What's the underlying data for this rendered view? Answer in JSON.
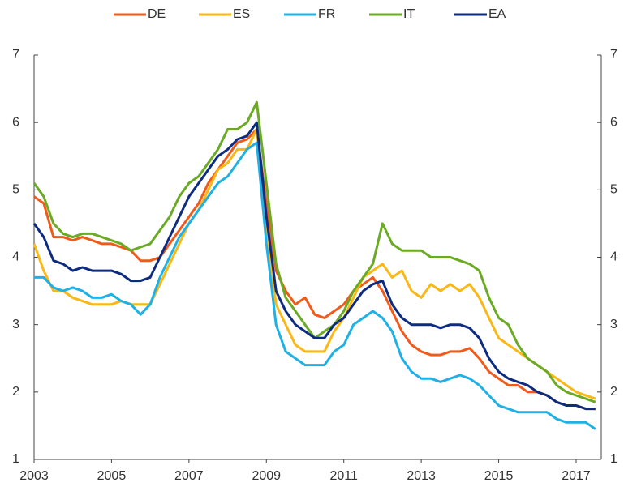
{
  "chart_data": {
    "type": "line",
    "x": [
      2003,
      2003.25,
      2003.5,
      2003.75,
      2004,
      2004.25,
      2004.5,
      2004.75,
      2005,
      2005.25,
      2005.5,
      2005.75,
      2006,
      2006.25,
      2006.5,
      2006.75,
      2007,
      2007.25,
      2007.5,
      2007.75,
      2008,
      2008.25,
      2008.5,
      2008.75,
      2009,
      2009.25,
      2009.5,
      2009.75,
      2010,
      2010.25,
      2010.5,
      2010.75,
      2011,
      2011.25,
      2011.5,
      2011.75,
      2012,
      2012.25,
      2012.5,
      2012.75,
      2013,
      2013.25,
      2013.5,
      2013.75,
      2014,
      2014.25,
      2014.5,
      2014.75,
      2015,
      2015.25,
      2015.5,
      2015.75,
      2016,
      2016.25,
      2016.5,
      2016.75,
      2017,
      2017.25,
      2017.5
    ],
    "series": [
      {
        "name": "DE",
        "color": "#f05a1a",
        "values": [
          4.9,
          4.8,
          4.3,
          4.3,
          4.25,
          4.3,
          4.25,
          4.2,
          4.2,
          4.15,
          4.1,
          3.95,
          3.95,
          4.0,
          4.2,
          4.4,
          4.6,
          4.8,
          5.1,
          5.3,
          5.5,
          5.7,
          5.75,
          5.9,
          4.8,
          3.8,
          3.5,
          3.3,
          3.4,
          3.15,
          3.1,
          3.2,
          3.3,
          3.5,
          3.6,
          3.7,
          3.5,
          3.2,
          2.9,
          2.7,
          2.6,
          2.55,
          2.55,
          2.6,
          2.6,
          2.65,
          2.5,
          2.3,
          2.2,
          2.1,
          2.1,
          2.0,
          2.0,
          1.95,
          1.85,
          1.8,
          1.8,
          1.75,
          1.75
        ]
      },
      {
        "name": "ES",
        "color": "#fbb714",
        "values": [
          4.2,
          3.8,
          3.5,
          3.5,
          3.4,
          3.35,
          3.3,
          3.3,
          3.3,
          3.35,
          3.3,
          3.3,
          3.3,
          3.6,
          3.9,
          4.2,
          4.5,
          4.7,
          5.0,
          5.3,
          5.4,
          5.6,
          5.6,
          5.9,
          4.5,
          3.3,
          3.0,
          2.7,
          2.6,
          2.6,
          2.6,
          2.9,
          3.1,
          3.4,
          3.7,
          3.8,
          3.9,
          3.7,
          3.8,
          3.5,
          3.4,
          3.6,
          3.5,
          3.6,
          3.5,
          3.6,
          3.4,
          3.1,
          2.8,
          2.7,
          2.6,
          2.5,
          2.4,
          2.3,
          2.2,
          2.1,
          2.0,
          1.95,
          1.9
        ]
      },
      {
        "name": "FR",
        "color": "#1fb1e6",
        "values": [
          3.7,
          3.7,
          3.55,
          3.5,
          3.55,
          3.5,
          3.4,
          3.4,
          3.45,
          3.35,
          3.3,
          3.15,
          3.3,
          3.7,
          4.0,
          4.3,
          4.5,
          4.7,
          4.9,
          5.1,
          5.2,
          5.4,
          5.6,
          5.7,
          4.2,
          3.0,
          2.6,
          2.5,
          2.4,
          2.4,
          2.4,
          2.6,
          2.7,
          3.0,
          3.1,
          3.2,
          3.1,
          2.9,
          2.5,
          2.3,
          2.2,
          2.2,
          2.15,
          2.2,
          2.25,
          2.2,
          2.1,
          1.95,
          1.8,
          1.75,
          1.7,
          1.7,
          1.7,
          1.7,
          1.6,
          1.55,
          1.55,
          1.55,
          1.45
        ]
      },
      {
        "name": "IT",
        "color": "#6aaa24",
        "values": [
          5.1,
          4.9,
          4.5,
          4.35,
          4.3,
          4.35,
          4.35,
          4.3,
          4.25,
          4.2,
          4.1,
          4.15,
          4.2,
          4.4,
          4.6,
          4.9,
          5.1,
          5.2,
          5.4,
          5.6,
          5.9,
          5.9,
          6.0,
          6.3,
          5.1,
          3.9,
          3.4,
          3.2,
          3.0,
          2.8,
          2.9,
          3.0,
          3.2,
          3.5,
          3.7,
          3.9,
          4.5,
          4.2,
          4.1,
          4.1,
          4.1,
          4.0,
          4.0,
          4.0,
          3.95,
          3.9,
          3.8,
          3.4,
          3.1,
          3.0,
          2.7,
          2.5,
          2.4,
          2.3,
          2.1,
          2.0,
          1.95,
          1.9,
          1.85
        ]
      },
      {
        "name": "EA",
        "color": "#0d2b80",
        "values": [
          4.5,
          4.3,
          3.95,
          3.9,
          3.8,
          3.85,
          3.8,
          3.8,
          3.8,
          3.75,
          3.65,
          3.65,
          3.7,
          4.0,
          4.3,
          4.6,
          4.9,
          5.1,
          5.3,
          5.5,
          5.6,
          5.75,
          5.8,
          6.0,
          4.6,
          3.5,
          3.2,
          3.0,
          2.9,
          2.8,
          2.8,
          3.0,
          3.1,
          3.3,
          3.5,
          3.6,
          3.65,
          3.3,
          3.1,
          3.0,
          3.0,
          3.0,
          2.95,
          3.0,
          3.0,
          2.95,
          2.8,
          2.5,
          2.3,
          2.2,
          2.15,
          2.1,
          2.0,
          1.95,
          1.85,
          1.8,
          1.8,
          1.75,
          1.75
        ]
      }
    ],
    "xlim": [
      2003,
      2017.65
    ],
    "xticks": [
      2003,
      2005,
      2007,
      2009,
      2011,
      2013,
      2015,
      2017
    ],
    "ylim": [
      1,
      7
    ],
    "yticks": [
      1,
      2,
      3,
      4,
      5,
      6,
      7
    ]
  }
}
